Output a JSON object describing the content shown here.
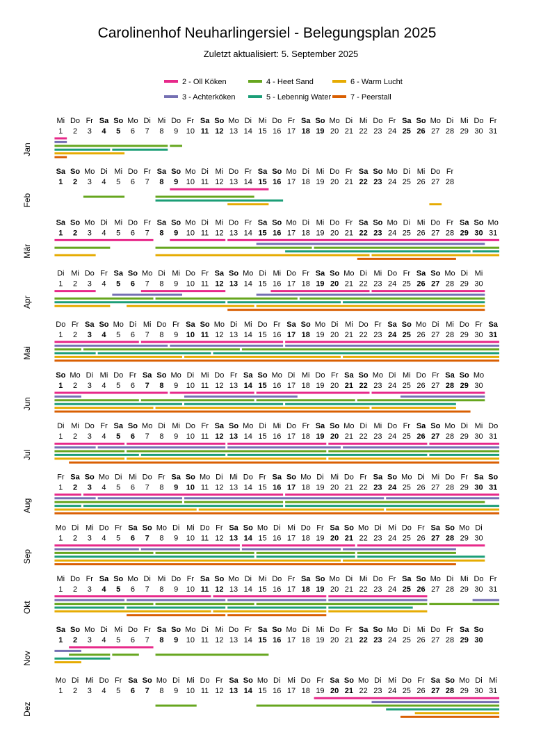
{
  "chart_data": {
    "type": "gantt",
    "title": "Carolinenhof Neuharlingersiel - Belegungsplan 2025",
    "subtitle": "Zuletzt aktualisiert:  5. September 2025",
    "year": 2025,
    "legend": [
      {
        "label": "2 - Oll Köken",
        "color": "#e7298a"
      },
      {
        "label": "3 - Achterköken",
        "color": "#7570b3"
      },
      {
        "label": "4 - Heet Sand",
        "color": "#66a61e"
      },
      {
        "label": "5 - Lebennig Water",
        "color": "#1b9e77"
      },
      {
        "label": "6 - Warm Lucht",
        "color": "#e6ab02"
      },
      {
        "label": "7 - Peerstall",
        "color": "#d95f02"
      }
    ],
    "weekday_names": [
      "So",
      "Mo",
      "Di",
      "Mi",
      "Do",
      "Fr",
      "Sa"
    ],
    "months": [
      {
        "label": "Jan",
        "days": 31,
        "first_weekday": 3,
        "bookings": [
          [
            [
              1,
              1
            ]
          ],
          [
            [
              1,
              1
            ]
          ],
          [
            [
              1,
              8
            ],
            [
              9,
              9
            ]
          ],
          [
            [
              1,
              4
            ],
            [
              5,
              8
            ]
          ],
          [
            [
              1,
              5
            ]
          ],
          [
            [
              1,
              1
            ]
          ]
        ]
      },
      {
        "label": "Feb",
        "days": 28,
        "first_weekday": 6,
        "bookings": [
          [
            [
              9,
              15
            ]
          ],
          [],
          [
            [
              3,
              5
            ],
            [
              8,
              14
            ]
          ],
          [
            [
              8,
              16
            ]
          ],
          [
            [
              13,
              15
            ],
            [
              27,
              27
            ]
          ],
          []
        ]
      },
      {
        "label": "Mär",
        "days": 31,
        "first_weekday": 6,
        "bookings": [
          [
            [
              1,
              7
            ],
            [
              9,
              12
            ],
            [
              13,
              31
            ]
          ],
          [
            [
              15,
              30
            ]
          ],
          [
            [
              1,
              4
            ],
            [
              8,
              18
            ],
            [
              19,
              31
            ]
          ],
          [
            [
              17,
              29
            ],
            [
              30,
              31
            ]
          ],
          [
            [
              1,
              3
            ],
            [
              8,
              22
            ],
            [
              23,
              31
            ]
          ],
          [
            [
              22,
              28
            ]
          ]
        ]
      },
      {
        "label": "Apr",
        "days": 30,
        "first_weekday": 2,
        "bookings": [
          [
            [
              1,
              3
            ],
            [
              7,
              12
            ],
            [
              16,
              22
            ],
            [
              23,
              30
            ]
          ],
          [
            [
              5,
              9
            ],
            [
              15,
              30
            ]
          ],
          [
            [
              1,
              7
            ],
            [
              8,
              17
            ],
            [
              18,
              30
            ]
          ],
          [
            [
              1,
              12
            ],
            [
              13,
              20
            ],
            [
              21,
              30
            ]
          ],
          [
            [
              1,
              4
            ],
            [
              6,
              14
            ],
            [
              15,
              30
            ]
          ],
          [
            [
              13,
              30
            ]
          ]
        ]
      },
      {
        "label": "Mai",
        "days": 31,
        "first_weekday": 4,
        "bookings": [
          [
            [
              1,
              6
            ],
            [
              7,
              16
            ],
            [
              17,
              31
            ]
          ],
          [
            [
              1,
              8
            ],
            [
              9,
              16
            ],
            [
              17,
              31
            ]
          ],
          [
            [
              1,
              2
            ],
            [
              3,
              13
            ],
            [
              14,
              31
            ]
          ],
          [
            [
              1,
              3
            ],
            [
              4,
              11
            ],
            [
              12,
              31
            ]
          ],
          [
            [
              1,
              9
            ],
            [
              10,
              20
            ],
            [
              21,
              31
            ]
          ],
          [
            [
              1,
              31
            ]
          ]
        ]
      },
      {
        "label": "Jun",
        "days": 30,
        "first_weekday": 0,
        "bookings": [
          [
            [
              1,
              8
            ],
            [
              9,
              14
            ],
            [
              15,
              22
            ],
            [
              23,
              30
            ]
          ],
          [
            [
              1,
              2
            ],
            [
              10,
              17
            ],
            [
              25,
              30
            ]
          ],
          [
            [
              1,
              6
            ],
            [
              7,
              14
            ],
            [
              15,
              21
            ],
            [
              22,
              30
            ]
          ],
          [
            [
              1,
              9
            ],
            [
              10,
              16
            ],
            [
              17,
              28
            ]
          ],
          [
            [
              1,
              7
            ],
            [
              8,
              22
            ],
            [
              23,
              28
            ]
          ],
          [
            [
              1,
              29
            ]
          ]
        ]
      },
      {
        "label": "Jul",
        "days": 31,
        "first_weekday": 2,
        "bookings": [
          [
            [
              1,
              5
            ],
            [
              6,
              12
            ],
            [
              13,
              19
            ],
            [
              20,
              26
            ],
            [
              27,
              31
            ]
          ],
          [
            [
              1,
              3
            ],
            [
              4,
              12
            ],
            [
              13,
              20
            ],
            [
              21,
              31
            ]
          ],
          [
            [
              1,
              5
            ],
            [
              6,
              19
            ],
            [
              20,
              31
            ]
          ],
          [
            [
              1,
              6
            ],
            [
              7,
              12
            ],
            [
              13,
              26
            ],
            [
              27,
              31
            ]
          ],
          [
            [
              1,
              5
            ],
            [
              6,
              19
            ],
            [
              20,
              31
            ]
          ],
          [
            [
              2,
              31
            ]
          ]
        ]
      },
      {
        "label": "Aug",
        "days": 31,
        "first_weekday": 5,
        "bookings": [
          [
            [
              1,
              2
            ],
            [
              3,
              16
            ],
            [
              17,
              31
            ]
          ],
          [
            [
              1,
              3
            ],
            [
              4,
              9
            ],
            [
              10,
              23
            ],
            [
              24,
              31
            ]
          ],
          [
            [
              1,
              9
            ],
            [
              10,
              16
            ],
            [
              17,
              30
            ]
          ],
          [
            [
              1,
              2
            ],
            [
              3,
              16
            ],
            [
              17,
              31
            ]
          ],
          [
            [
              1,
              10
            ],
            [
              11,
              23
            ],
            [
              24,
              31
            ]
          ],
          [
            [
              1,
              31
            ]
          ]
        ]
      },
      {
        "label": "Sep",
        "days": 30,
        "first_weekday": 1,
        "bookings": [
          [
            [
              1,
              13
            ],
            [
              14,
              21
            ],
            [
              22,
              30
            ]
          ],
          [
            [
              1,
              6
            ],
            [
              7,
              13
            ],
            [
              14,
              20
            ],
            [
              21,
              28
            ]
          ],
          [
            [
              1,
              7
            ],
            [
              8,
              14
            ],
            [
              15,
              21
            ],
            [
              22,
              28
            ]
          ],
          [
            [
              1,
              14
            ],
            [
              15,
              21
            ],
            [
              22,
              30
            ]
          ],
          [
            [
              1,
              20
            ],
            [
              21,
              30
            ]
          ],
          [
            [
              1,
              28
            ]
          ]
        ]
      },
      {
        "label": "Okt",
        "days": 31,
        "first_weekday": 3,
        "bookings": [
          [
            [
              1,
              11
            ],
            [
              12,
              19
            ],
            [
              20,
              26
            ]
          ],
          [
            [
              1,
              5
            ],
            [
              6,
              12
            ],
            [
              13,
              19
            ],
            [
              20,
              26
            ],
            [
              30,
              31
            ]
          ],
          [
            [
              1,
              7
            ],
            [
              8,
              14
            ],
            [
              15,
              26
            ],
            [
              27,
              31
            ]
          ],
          [
            [
              1,
              5
            ],
            [
              6,
              12
            ],
            [
              13,
              19
            ],
            [
              20,
              25
            ]
          ],
          [
            [
              1,
              11
            ],
            [
              12,
              19
            ],
            [
              20,
              26
            ]
          ],
          [
            [
              6,
              12
            ],
            [
              13,
              19
            ]
          ]
        ]
      },
      {
        "label": "Nov",
        "days": 30,
        "first_weekday": 6,
        "bookings": [
          [
            [
              2,
              7
            ]
          ],
          [
            [
              1,
              2
            ]
          ],
          [
            [
              2,
              4
            ],
            [
              5,
              6
            ],
            [
              8,
              15
            ]
          ],
          [
            [
              1,
              4
            ]
          ],
          [
            [
              1,
              2
            ]
          ],
          []
        ]
      },
      {
        "label": "Dez",
        "days": 31,
        "first_weekday": 1,
        "bookings": [
          [
            [
              19,
              31
            ]
          ],
          [
            [
              23,
              31
            ]
          ],
          [
            [
              8,
              10
            ],
            [
              15,
              31
            ]
          ],
          [
            [
              24,
              31
            ]
          ],
          [
            [
              26,
              31
            ]
          ],
          [
            [
              25,
              31
            ]
          ]
        ]
      }
    ]
  }
}
